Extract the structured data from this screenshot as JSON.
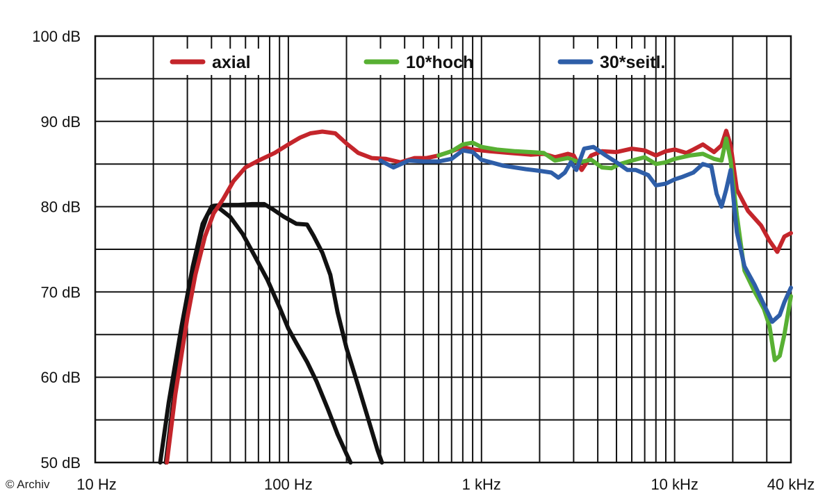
{
  "copyright": "© Archiv",
  "chart_data": {
    "type": "line",
    "title": "",
    "xlabel": "",
    "ylabel": "",
    "x_scale": "log",
    "xlim": [
      10,
      40000
    ],
    "ylim": [
      50,
      100
    ],
    "grid": true,
    "legend_position": "top",
    "x_tick_labels": [
      {
        "value": 10,
        "label": "10 Hz"
      },
      {
        "value": 100,
        "label": "100 Hz"
      },
      {
        "value": 1000,
        "label": "1 kHz"
      },
      {
        "value": 10000,
        "label": "10 kHz"
      },
      {
        "value": 40000,
        "label": "40 kHz"
      }
    ],
    "y_tick_labels": [
      {
        "value": 50,
        "label": "50 dB"
      },
      {
        "value": 60,
        "label": "60 dB"
      },
      {
        "value": 70,
        "label": "70 dB"
      },
      {
        "value": 80,
        "label": "80 dB"
      },
      {
        "value": 90,
        "label": "90 dB"
      },
      {
        "value": 100,
        "label": "100 dB"
      }
    ],
    "series": [
      {
        "name": "",
        "color": "#111111",
        "points": [
          [
            23.2,
            50
          ],
          [
            25,
            56
          ],
          [
            28,
            65
          ],
          [
            32,
            72.6
          ],
          [
            35.5,
            77
          ],
          [
            38,
            79
          ],
          [
            41,
            80.1
          ],
          [
            46,
            80.2
          ],
          [
            55,
            80.2
          ],
          [
            65,
            80.3
          ],
          [
            75,
            80.3
          ],
          [
            83,
            79.7
          ],
          [
            95,
            78.8
          ],
          [
            110,
            78
          ],
          [
            125,
            77.9
          ],
          [
            135,
            76.6
          ],
          [
            150,
            74.6
          ],
          [
            165,
            72
          ],
          [
            180,
            67.6
          ],
          [
            200,
            63.4
          ],
          [
            230,
            59
          ],
          [
            260,
            55
          ],
          [
            290,
            51.4
          ],
          [
            305,
            50
          ]
        ]
      },
      {
        "name": "",
        "color": "#111111",
        "points": [
          [
            21.7,
            50
          ],
          [
            24,
            57
          ],
          [
            28,
            66
          ],
          [
            32,
            73
          ],
          [
            36,
            78
          ],
          [
            40,
            80
          ],
          [
            44,
            79.8
          ],
          [
            50,
            78.8
          ],
          [
            58,
            76.8
          ],
          [
            67,
            74.2
          ],
          [
            78,
            71.4
          ],
          [
            90,
            68.2
          ],
          [
            100,
            65.7
          ],
          [
            110,
            64
          ],
          [
            125,
            61.8
          ],
          [
            140,
            59.5
          ],
          [
            160,
            56.3
          ],
          [
            180,
            53.3
          ],
          [
            200,
            51
          ],
          [
            210,
            50
          ]
        ]
      },
      {
        "name": "axial",
        "color": "#c4252b",
        "points": [
          [
            23.5,
            50
          ],
          [
            26,
            58
          ],
          [
            30,
            67
          ],
          [
            33,
            72
          ],
          [
            37,
            76.5
          ],
          [
            41,
            79.2
          ],
          [
            46,
            80.9
          ],
          [
            52,
            83
          ],
          [
            60,
            84.6
          ],
          [
            70,
            85.4
          ],
          [
            85,
            86.3
          ],
          [
            100,
            87.3
          ],
          [
            115,
            88.1
          ],
          [
            130,
            88.6
          ],
          [
            150,
            88.8
          ],
          [
            175,
            88.6
          ],
          [
            200,
            87.4
          ],
          [
            230,
            86.3
          ],
          [
            270,
            85.7
          ],
          [
            320,
            85.6
          ],
          [
            380,
            85.2
          ],
          [
            450,
            85.7
          ],
          [
            520,
            85.7
          ],
          [
            600,
            86
          ],
          [
            700,
            86.5
          ],
          [
            800,
            87
          ],
          [
            900,
            86.7
          ],
          [
            1100,
            86.5
          ],
          [
            1400,
            86.3
          ],
          [
            1800,
            86.1
          ],
          [
            2100,
            86.2
          ],
          [
            2400,
            85.8
          ],
          [
            2800,
            86.2
          ],
          [
            3000,
            86
          ],
          [
            3300,
            84.3
          ],
          [
            3700,
            86
          ],
          [
            4200,
            86.5
          ],
          [
            5000,
            86.4
          ],
          [
            6000,
            86.8
          ],
          [
            7000,
            86.6
          ],
          [
            8000,
            86
          ],
          [
            9000,
            86.5
          ],
          [
            10000,
            86.7
          ],
          [
            11500,
            86.3
          ],
          [
            12500,
            86.7
          ],
          [
            14000,
            87.3
          ],
          [
            16000,
            86.4
          ],
          [
            17500,
            87.2
          ],
          [
            18500,
            88.9
          ],
          [
            19500,
            87.2
          ],
          [
            21000,
            82
          ],
          [
            24000,
            79.5
          ],
          [
            28000,
            77.8
          ],
          [
            31000,
            76
          ],
          [
            34000,
            74.7
          ],
          [
            37000,
            76.5
          ],
          [
            40000,
            76.9
          ]
        ]
      },
      {
        "name": "10*hoch",
        "color": "#58b033",
        "points": [
          [
            600,
            86
          ],
          [
            700,
            86.5
          ],
          [
            800,
            87.3
          ],
          [
            900,
            87.5
          ],
          [
            1000,
            87
          ],
          [
            1200,
            86.7
          ],
          [
            1500,
            86.5
          ],
          [
            1800,
            86.4
          ],
          [
            2100,
            86.3
          ],
          [
            2400,
            85.4
          ],
          [
            2800,
            85.7
          ],
          [
            3200,
            85.2
          ],
          [
            3700,
            85.5
          ],
          [
            4200,
            84.6
          ],
          [
            4700,
            84.5
          ],
          [
            5200,
            85
          ],
          [
            6000,
            85.4
          ],
          [
            7000,
            85.8
          ],
          [
            8000,
            85
          ],
          [
            9000,
            85.2
          ],
          [
            10000,
            85.6
          ],
          [
            12000,
            86
          ],
          [
            14000,
            86.2
          ],
          [
            16000,
            85.6
          ],
          [
            17500,
            85.4
          ],
          [
            18500,
            88
          ],
          [
            19500,
            85.4
          ],
          [
            21000,
            79
          ],
          [
            23000,
            72.5
          ],
          [
            26000,
            70
          ],
          [
            29000,
            68
          ],
          [
            31000,
            66
          ],
          [
            33000,
            62
          ],
          [
            35000,
            62.5
          ],
          [
            37000,
            65
          ],
          [
            40000,
            69.5
          ]
        ]
      },
      {
        "name": "30*seitl.",
        "color": "#2e5ea8",
        "points": [
          [
            300,
            85.4
          ],
          [
            350,
            84.6
          ],
          [
            420,
            85.4
          ],
          [
            500,
            85.3
          ],
          [
            600,
            85.3
          ],
          [
            700,
            85.6
          ],
          [
            800,
            86.6
          ],
          [
            900,
            86.4
          ],
          [
            1000,
            85.5
          ],
          [
            1300,
            84.8
          ],
          [
            1700,
            84.4
          ],
          [
            2000,
            84.2
          ],
          [
            2300,
            84
          ],
          [
            2500,
            83.4
          ],
          [
            2700,
            84
          ],
          [
            2900,
            85.2
          ],
          [
            3100,
            84.3
          ],
          [
            3400,
            86.8
          ],
          [
            3800,
            87
          ],
          [
            4400,
            86
          ],
          [
            5000,
            85.2
          ],
          [
            5700,
            84.3
          ],
          [
            6300,
            84.3
          ],
          [
            7300,
            83.7
          ],
          [
            8000,
            82.5
          ],
          [
            9000,
            82.7
          ],
          [
            10000,
            83.2
          ],
          [
            11000,
            83.5
          ],
          [
            12500,
            84
          ],
          [
            14000,
            85
          ],
          [
            15500,
            84.7
          ],
          [
            16500,
            81.5
          ],
          [
            17500,
            80
          ],
          [
            18500,
            82
          ],
          [
            19500,
            84.3
          ],
          [
            21000,
            77
          ],
          [
            23000,
            73
          ],
          [
            26000,
            70.8
          ],
          [
            29000,
            68.5
          ],
          [
            32000,
            66.5
          ],
          [
            35000,
            67.3
          ],
          [
            37000,
            68.8
          ],
          [
            40000,
            70.5
          ]
        ]
      }
    ]
  }
}
